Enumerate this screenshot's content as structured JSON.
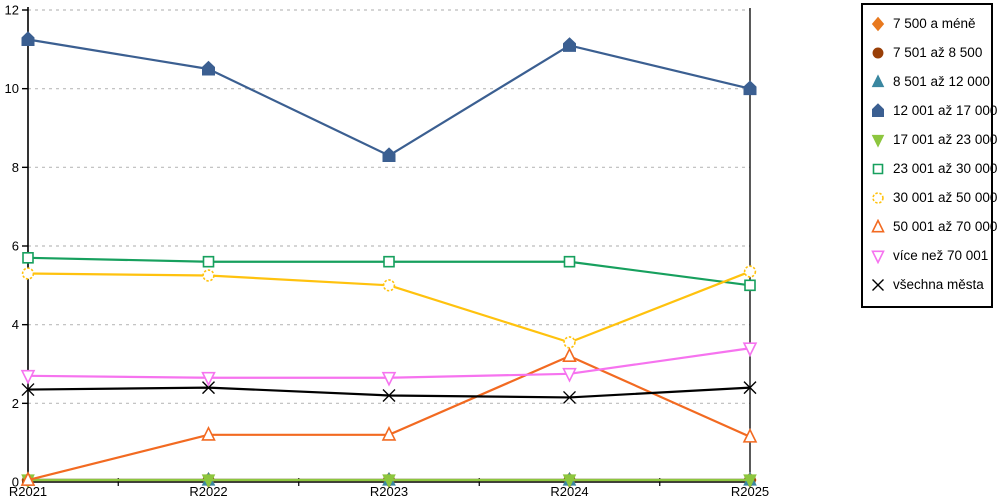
{
  "chart_data": {
    "type": "line",
    "title": "",
    "xlabel": "",
    "ylabel": "",
    "x": [
      "R2021",
      "R2022",
      "R2023",
      "R2024",
      "R2025"
    ],
    "ylim": [
      0,
      12
    ],
    "yticks": [
      0,
      2,
      4,
      6,
      8,
      10,
      12
    ],
    "grid": true,
    "grid_style": "dashed",
    "legend_position": "right",
    "series": [
      {
        "name": "7 500 a méně",
        "marker": "diamond",
        "open": false,
        "color": "#E8791E",
        "values": [
          0.05,
          0.05,
          0.05,
          0.05,
          0.05
        ]
      },
      {
        "name": "7 501 až 8 500",
        "marker": "circle",
        "open": false,
        "color": "#993F07",
        "values": [
          0.05,
          0.05,
          0.05,
          0.05,
          0.05
        ]
      },
      {
        "name": "8 501 až 12 000",
        "marker": "triangle-up",
        "open": false,
        "color": "#3A87A0",
        "values": [
          0.05,
          0.05,
          0.05,
          0.05,
          0.05
        ]
      },
      {
        "name": "12 001 až 17 000",
        "marker": "pentagon",
        "open": false,
        "color": "#3B5F91",
        "values": [
          11.25,
          10.5,
          8.3,
          11.1,
          10.0
        ]
      },
      {
        "name": "17 001 až 23 000",
        "marker": "triangle-down",
        "open": false,
        "color": "#8DC63F",
        "values": [
          0.05,
          0.05,
          0.05,
          0.05,
          0.05
        ]
      },
      {
        "name": "23 001 až 30 000",
        "marker": "square",
        "open": true,
        "color": "#17A05E",
        "values": [
          5.7,
          5.6,
          5.6,
          5.6,
          5.0
        ]
      },
      {
        "name": "30 001 až 50 000",
        "marker": "circle",
        "open": true,
        "color": "#FFC20E",
        "values": [
          5.3,
          5.25,
          5.0,
          3.55,
          5.35
        ]
      },
      {
        "name": "50 001 až 70 000",
        "marker": "triangle-up",
        "open": true,
        "color": "#F26A21",
        "values": [
          0.05,
          1.2,
          1.2,
          3.2,
          1.15
        ]
      },
      {
        "name": "více než 70 001",
        "marker": "triangle-down",
        "open": true,
        "color": "#F673EF",
        "values": [
          2.7,
          2.65,
          2.65,
          2.75,
          3.4
        ]
      },
      {
        "name": "všechna města",
        "marker": "x",
        "open": true,
        "color": "#000000",
        "values": [
          2.35,
          2.4,
          2.2,
          2.15,
          2.4
        ]
      }
    ]
  },
  "colors": {
    "axis": "#000000",
    "gridline": "#bcbcbc",
    "background": "#ffffff"
  }
}
